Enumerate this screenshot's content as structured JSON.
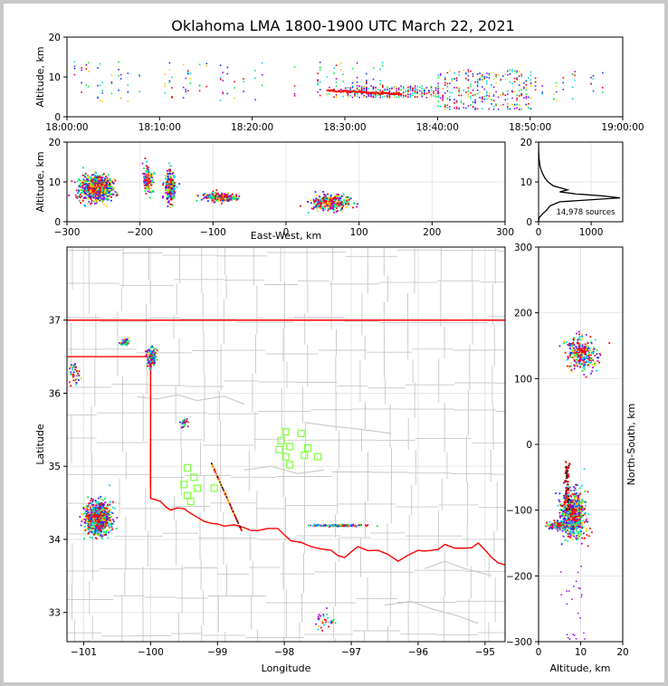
{
  "figure_title": "Oklahoma LMA 1800-1900 UTC March 22, 2021",
  "colors": {
    "boundary": "#ff0000",
    "county": "#c8c8c8",
    "station": "#80ff40",
    "axis": "#000000"
  },
  "chart_data": [
    {
      "id": "time-height",
      "type": "scatter",
      "ylabel": "Altitude, km",
      "ylim": [
        0,
        20
      ],
      "yticks": [
        "0",
        "10",
        "20"
      ],
      "xticks": [
        "18:00:00",
        "18:10:00",
        "18:20:00",
        "18:30:00",
        "18:40:00",
        "18:50:00",
        "19:00:00"
      ],
      "xlim_minutes": [
        0,
        60
      ],
      "clusters": [
        {
          "t_min": 0.5,
          "t_max": 8,
          "z_min": 4,
          "z_max": 14,
          "density": "low"
        },
        {
          "t_min": 10,
          "t_max": 22,
          "z_min": 4,
          "z_max": 14,
          "density": "low"
        },
        {
          "t_min": 24,
          "t_max": 34,
          "z_min": 5,
          "z_max": 14,
          "density": "medium"
        },
        {
          "t_min": 30,
          "t_max": 40,
          "z_min": 5,
          "z_max": 8,
          "density": "high"
        },
        {
          "t_min": 40,
          "t_max": 50,
          "z_min": 2,
          "z_max": 12,
          "density": "high"
        },
        {
          "t_min": 50,
          "t_max": 58,
          "z_min": 4,
          "z_max": 12,
          "density": "low"
        }
      ]
    },
    {
      "id": "east-west-altitude",
      "type": "scatter",
      "xlabel": "East-West, km",
      "ylabel": "Altitude, km",
      "xlim": [
        -300,
        300
      ],
      "ylim": [
        0,
        20
      ],
      "xticks": [
        "−300",
        "−200",
        "−100",
        "0",
        "100",
        "200",
        "300"
      ],
      "yticks": [
        "0",
        "10",
        "20"
      ],
      "clusters": [
        {
          "x": -262,
          "z": 8.5,
          "sx": 18,
          "sz": 2.5,
          "n": 900
        },
        {
          "x": -190,
          "z": 11,
          "sx": 6,
          "sz": 3,
          "n": 150
        },
        {
          "x": -160,
          "z": 9,
          "sx": 6,
          "sz": 3.5,
          "n": 250
        },
        {
          "x": -90,
          "z": 6.3,
          "sx": 18,
          "sz": 0.8,
          "n": 250
        },
        {
          "x": 60,
          "z": 5,
          "sx": 22,
          "sz": 1.5,
          "n": 350
        }
      ]
    },
    {
      "id": "altitude-histogram",
      "type": "line",
      "xlim": [
        0,
        1600
      ],
      "ylim": [
        0,
        20
      ],
      "xticks": [
        "0",
        "1000"
      ],
      "yticks": [
        "0",
        "10",
        "20"
      ],
      "annotation": "14,978 sources",
      "profile": [
        {
          "z": 0,
          "count": 0
        },
        {
          "z": 1,
          "count": 10
        },
        {
          "z": 2,
          "count": 80
        },
        {
          "z": 3,
          "count": 160
        },
        {
          "z": 4,
          "count": 220
        },
        {
          "z": 5,
          "count": 400
        },
        {
          "z": 6,
          "count": 1550
        },
        {
          "z": 6.5,
          "count": 1200
        },
        {
          "z": 7,
          "count": 700
        },
        {
          "z": 7.5,
          "count": 400
        },
        {
          "z": 8,
          "count": 550
        },
        {
          "z": 8.5,
          "count": 420
        },
        {
          "z": 9,
          "count": 280
        },
        {
          "z": 10,
          "count": 180
        },
        {
          "z": 11,
          "count": 120
        },
        {
          "z": 12,
          "count": 80
        },
        {
          "z": 13,
          "count": 50
        },
        {
          "z": 14,
          "count": 25
        },
        {
          "z": 16,
          "count": 8
        },
        {
          "z": 18,
          "count": 2
        },
        {
          "z": 20,
          "count": 0
        }
      ]
    },
    {
      "id": "plan-view",
      "type": "scatter",
      "xlabel": "Longitude",
      "ylabel": "Latitude",
      "xlim": [
        -101.25,
        -94.7
      ],
      "ylim": [
        32.6,
        38.0
      ],
      "xticks": [
        "−101",
        "−100",
        "−99",
        "−98",
        "−97",
        "−96",
        "−95"
      ],
      "yticks": [
        "33",
        "34",
        "35",
        "36",
        "37"
      ],
      "clusters": [
        {
          "lon": -100.8,
          "lat": 34.3,
          "slon": 0.13,
          "slat": 0.15,
          "n": 900
        },
        {
          "lon": -100.0,
          "lat": 36.5,
          "slon": 0.05,
          "slat": 0.08,
          "n": 200
        },
        {
          "lon": -100.4,
          "lat": 36.7,
          "slon": 0.04,
          "slat": 0.03,
          "n": 60
        },
        {
          "lon": -101.15,
          "lat": 36.3,
          "slon": 0.05,
          "slat": 0.1,
          "n": 40
        },
        {
          "lon": -99.5,
          "lat": 35.6,
          "slon": 0.04,
          "slat": 0.05,
          "n": 30
        },
        {
          "lon": -97.2,
          "lat": 34.2,
          "slon": 0.25,
          "slat": 0.01,
          "n": 120
        },
        {
          "lon": -97.4,
          "lat": 32.9,
          "slon": 0.1,
          "slat": 0.1,
          "n": 30
        }
      ],
      "stations": [
        [
          -99.45,
          34.98
        ],
        [
          -99.35,
          34.85
        ],
        [
          -99.5,
          34.75
        ],
        [
          -99.3,
          34.7
        ],
        [
          -99.45,
          34.6
        ],
        [
          -99.4,
          34.52
        ],
        [
          -99.05,
          34.7
        ],
        [
          -97.98,
          35.47
        ],
        [
          -98.05,
          35.35
        ],
        [
          -97.92,
          35.27
        ],
        [
          -98.08,
          35.23
        ],
        [
          -97.75,
          35.45
        ],
        [
          -97.65,
          35.25
        ],
        [
          -97.7,
          35.15
        ],
        [
          -97.5,
          35.13
        ],
        [
          -97.98,
          35.13
        ],
        [
          -97.92,
          35.02
        ]
      ]
    },
    {
      "id": "altitude-north-south",
      "type": "scatter",
      "xlabel": "Altitude, km",
      "ylabel": "North-South, km",
      "xlim": [
        0,
        20
      ],
      "ylim": [
        -300,
        300
      ],
      "xticks": [
        "0",
        "10",
        "20"
      ],
      "yticks": [
        "300",
        "200",
        "100",
        "0",
        "−100",
        "−200",
        "−300"
      ],
      "clusters": [
        {
          "z": 10,
          "ns": 140,
          "sz": 2.5,
          "sns": 15,
          "n": 300
        },
        {
          "z": 8,
          "ns": -105,
          "sz": 2,
          "sns": 20,
          "n": 700
        },
        {
          "z": 5,
          "ns": -122,
          "sz": 2.5,
          "sns": 4,
          "n": 120
        }
      ]
    }
  ]
}
